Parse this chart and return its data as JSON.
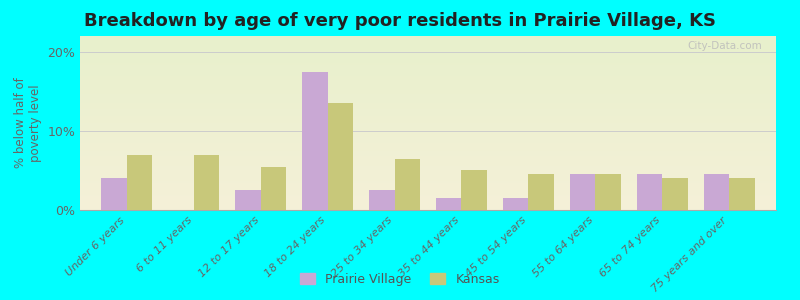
{
  "title": "Breakdown by age of very poor residents in Prairie Village, KS",
  "categories": [
    "Under 6 years",
    "6 to 11 years",
    "12 to 17 years",
    "18 to 24 years",
    "25 to 34 years",
    "35 to 44 years",
    "45 to 54 years",
    "55 to 64 years",
    "65 to 74 years",
    "75 years and over"
  ],
  "prairie_village": [
    4.0,
    0.0,
    2.5,
    17.5,
    2.5,
    1.5,
    1.5,
    4.5,
    4.5,
    4.5
  ],
  "kansas": [
    7.0,
    7.0,
    5.5,
    13.5,
    6.5,
    5.0,
    4.5,
    4.5,
    4.0,
    4.0
  ],
  "prairie_color": "#c9a8d4",
  "kansas_color": "#c8c87a",
  "background_plot_top": "#e8f0cc",
  "background_plot_bottom": "#f5f5e0",
  "background_fig": "#00ffff",
  "ylabel": "% below half of\npoverty level",
  "ylim": [
    0,
    22
  ],
  "yticks": [
    0,
    10,
    20
  ],
  "ytick_labels": [
    "0%",
    "10%",
    "20%"
  ],
  "bar_width": 0.38,
  "title_fontsize": 13,
  "legend_labels": [
    "Prairie Village",
    "Kansas"
  ]
}
